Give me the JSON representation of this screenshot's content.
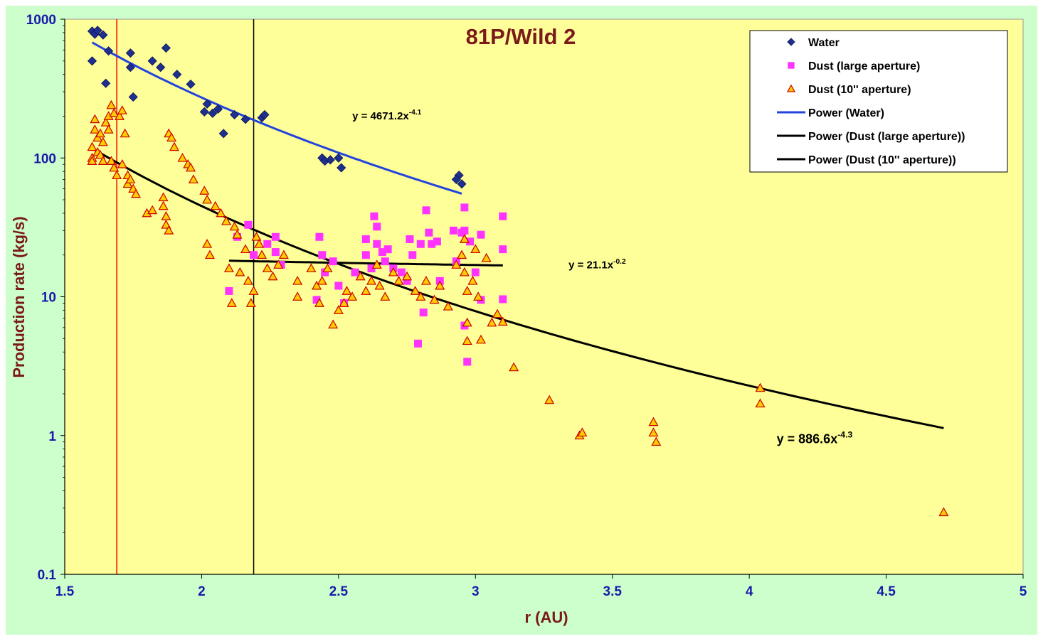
{
  "chart_data": {
    "type": "scatter",
    "title": "81P/Wild 2",
    "xlabel": "r (AU)",
    "ylabel": "Production rate (kg/s)",
    "x_scale": "linear",
    "y_scale": "log",
    "xlim": [
      1.5,
      5
    ],
    "ylim": [
      0.1,
      1000
    ],
    "x_ticks": [
      "1.5",
      "2",
      "2.5",
      "3",
      "3.5",
      "4",
      "4.5",
      "5"
    ],
    "y_ticks": [
      "0.1",
      "1",
      "10",
      "100",
      "1000"
    ],
    "grid": false,
    "legend_position": "top-right",
    "colors": {
      "outer_background": "#ccffcc",
      "plot_background": "#ffff99",
      "water": "#1f2f8f",
      "dust_large": "#ff33ff",
      "dust_10": "#ffcc00",
      "dust_10_edge": "#cc0000",
      "fit_water": "#2244dd",
      "fit_dust": "#000000",
      "title": "#7a1a1a",
      "axis_label": "#7a1a1a",
      "tick_label": "#1a1aaa"
    },
    "vertical_lines": [
      {
        "x": 1.69,
        "color": "#ff0000"
      },
      {
        "x": 2.19,
        "color": "#000000"
      }
    ],
    "series": [
      {
        "name": "Water",
        "marker": "diamond",
        "points": [
          [
            1.6,
            820
          ],
          [
            1.61,
            780
          ],
          [
            1.62,
            830
          ],
          [
            1.6,
            500
          ],
          [
            1.64,
            770
          ],
          [
            1.65,
            345
          ],
          [
            1.66,
            590
          ],
          [
            1.74,
            570
          ],
          [
            1.74,
            450
          ],
          [
            1.75,
            275
          ],
          [
            1.82,
            500
          ],
          [
            1.85,
            450
          ],
          [
            1.87,
            620
          ],
          [
            1.91,
            400
          ],
          [
            1.96,
            340
          ],
          [
            2.01,
            215
          ],
          [
            2.02,
            245
          ],
          [
            2.04,
            210
          ],
          [
            2.06,
            225
          ],
          [
            2.08,
            150
          ],
          [
            2.12,
            205
          ],
          [
            2.16,
            190
          ],
          [
            2.22,
            195
          ],
          [
            2.23,
            205
          ],
          [
            2.44,
            100
          ],
          [
            2.45,
            95
          ],
          [
            2.47,
            97
          ],
          [
            2.5,
            100
          ],
          [
            2.51,
            85
          ],
          [
            2.94,
            75
          ],
          [
            2.95,
            65
          ],
          [
            2.93,
            70
          ]
        ]
      },
      {
        "name": "Dust (large aperture)",
        "marker": "square",
        "points": [
          [
            2.1,
            11
          ],
          [
            2.13,
            27
          ],
          [
            2.17,
            33
          ],
          [
            2.19,
            20
          ],
          [
            2.24,
            24
          ],
          [
            2.27,
            27
          ],
          [
            2.27,
            21
          ],
          [
            2.29,
            17
          ],
          [
            2.42,
            9.5
          ],
          [
            2.43,
            27
          ],
          [
            2.44,
            20
          ],
          [
            2.45,
            15
          ],
          [
            2.48,
            18
          ],
          [
            2.5,
            12
          ],
          [
            2.52,
            9
          ],
          [
            2.56,
            15
          ],
          [
            2.6,
            26
          ],
          [
            2.6,
            20
          ],
          [
            2.62,
            16
          ],
          [
            2.63,
            38
          ],
          [
            2.64,
            32
          ],
          [
            2.64,
            24
          ],
          [
            2.66,
            21
          ],
          [
            2.67,
            18
          ],
          [
            2.68,
            22
          ],
          [
            2.7,
            16
          ],
          [
            2.73,
            15
          ],
          [
            2.75,
            13
          ],
          [
            2.76,
            26
          ],
          [
            2.77,
            20
          ],
          [
            2.79,
            4.6
          ],
          [
            2.8,
            24
          ],
          [
            2.81,
            7.7
          ],
          [
            2.82,
            42
          ],
          [
            2.83,
            29
          ],
          [
            2.84,
            24
          ],
          [
            2.86,
            25
          ],
          [
            2.87,
            13
          ],
          [
            2.92,
            30
          ],
          [
            2.93,
            18
          ],
          [
            2.95,
            29
          ],
          [
            2.96,
            44
          ],
          [
            2.96,
            30
          ],
          [
            2.96,
            6.2
          ],
          [
            2.97,
            3.4
          ],
          [
            2.98,
            25
          ],
          [
            3.0,
            15
          ],
          [
            3.02,
            28
          ],
          [
            3.02,
            9.5
          ],
          [
            3.1,
            38
          ],
          [
            3.1,
            22
          ],
          [
            3.1,
            9.6
          ]
        ]
      },
      {
        "name": "Dust (10'' aperture)",
        "marker": "triangle",
        "points": [
          [
            1.6,
            100
          ],
          [
            1.6,
            120
          ],
          [
            1.6,
            95
          ],
          [
            1.61,
            160
          ],
          [
            1.61,
            190
          ],
          [
            1.62,
            140
          ],
          [
            1.62,
            110
          ],
          [
            1.63,
            150
          ],
          [
            1.63,
            105
          ],
          [
            1.64,
            130
          ],
          [
            1.64,
            95
          ],
          [
            1.65,
            180
          ],
          [
            1.66,
            200
          ],
          [
            1.66,
            160
          ],
          [
            1.67,
            240
          ],
          [
            1.67,
            95
          ],
          [
            1.68,
            210
          ],
          [
            1.68,
            85
          ],
          [
            1.69,
            75
          ],
          [
            1.7,
            200
          ],
          [
            1.71,
            220
          ],
          [
            1.71,
            90
          ],
          [
            1.72,
            150
          ],
          [
            1.73,
            65
          ],
          [
            1.73,
            75
          ],
          [
            1.74,
            70
          ],
          [
            1.75,
            60
          ],
          [
            1.76,
            55
          ],
          [
            1.8,
            40
          ],
          [
            1.82,
            42
          ],
          [
            1.86,
            52
          ],
          [
            1.86,
            45
          ],
          [
            1.87,
            38
          ],
          [
            1.87,
            33
          ],
          [
            1.88,
            30
          ],
          [
            1.88,
            150
          ],
          [
            1.89,
            140
          ],
          [
            1.9,
            120
          ],
          [
            1.93,
            100
          ],
          [
            1.95,
            90
          ],
          [
            1.96,
            85
          ],
          [
            1.97,
            70
          ],
          [
            2.01,
            58
          ],
          [
            2.02,
            50
          ],
          [
            2.02,
            24
          ],
          [
            2.03,
            20
          ],
          [
            2.05,
            45
          ],
          [
            2.07,
            40
          ],
          [
            2.09,
            35
          ],
          [
            2.1,
            16
          ],
          [
            2.11,
            9
          ],
          [
            2.12,
            32
          ],
          [
            2.13,
            28
          ],
          [
            2.14,
            15
          ],
          [
            2.16,
            22
          ],
          [
            2.17,
            13
          ],
          [
            2.18,
            9
          ],
          [
            2.19,
            11
          ],
          [
            2.2,
            27
          ],
          [
            2.21,
            24
          ],
          [
            2.22,
            20
          ],
          [
            2.24,
            16
          ],
          [
            2.26,
            14
          ],
          [
            2.28,
            17
          ],
          [
            2.3,
            20
          ],
          [
            2.35,
            13
          ],
          [
            2.35,
            10
          ],
          [
            2.4,
            16
          ],
          [
            2.42,
            12
          ],
          [
            2.43,
            9
          ],
          [
            2.44,
            13
          ],
          [
            2.46,
            16
          ],
          [
            2.48,
            6.3
          ],
          [
            2.5,
            8
          ],
          [
            2.52,
            9
          ],
          [
            2.53,
            11
          ],
          [
            2.55,
            10
          ],
          [
            2.58,
            14
          ],
          [
            2.6,
            11
          ],
          [
            2.62,
            13
          ],
          [
            2.64,
            17
          ],
          [
            2.65,
            12
          ],
          [
            2.67,
            10
          ],
          [
            2.7,
            15
          ],
          [
            2.72,
            13
          ],
          [
            2.75,
            14
          ],
          [
            2.78,
            11
          ],
          [
            2.8,
            10
          ],
          [
            2.82,
            13
          ],
          [
            2.85,
            9.5
          ],
          [
            2.87,
            12
          ],
          [
            2.9,
            8.5
          ],
          [
            2.93,
            17
          ],
          [
            2.95,
            20
          ],
          [
            2.96,
            26
          ],
          [
            2.96,
            15
          ],
          [
            2.97,
            11
          ],
          [
            2.97,
            6.5
          ],
          [
            2.97,
            4.8
          ],
          [
            2.99,
            13
          ],
          [
            3.0,
            22
          ],
          [
            3.01,
            10
          ],
          [
            3.02,
            4.9
          ],
          [
            3.04,
            19
          ],
          [
            3.06,
            6.5
          ],
          [
            3.08,
            7.5
          ],
          [
            3.1,
            6.6
          ],
          [
            3.14,
            3.1
          ],
          [
            3.27,
            1.8
          ],
          [
            3.38,
            1.0
          ],
          [
            3.39,
            1.05
          ],
          [
            3.65,
            1.25
          ],
          [
            3.65,
            1.05
          ],
          [
            3.66,
            0.9
          ],
          [
            4.04,
            2.2
          ],
          [
            4.04,
            1.7
          ],
          [
            4.71,
            0.28
          ]
        ]
      },
      {
        "name": "Power (Water)",
        "type": "line",
        "formula": {
          "a": 4671.2,
          "b": -4.1
        },
        "xrange": [
          1.6,
          2.95
        ]
      },
      {
        "name": "Power (Dust (large aperture))",
        "type": "line",
        "formula": {
          "a": 21.1,
          "b": -0.2
        },
        "xrange": [
          2.1,
          3.1
        ]
      },
      {
        "name": "Power (Dust (10'' aperture))",
        "type": "line",
        "formula": {
          "a": 886.6,
          "b": -4.3
        },
        "xrange": [
          1.6,
          4.71
        ]
      }
    ],
    "annotations": [
      {
        "base": "y = 4671.2x",
        "exponent": "-4.1",
        "x": 2.55,
        "y": 190,
        "size": "small"
      },
      {
        "base": "y = 21.1x",
        "exponent": "-0.2",
        "x": 3.34,
        "y": 16,
        "size": "small"
      },
      {
        "base": "y = 886.6x",
        "exponent": "-4.3",
        "x": 4.1,
        "y": 0.88,
        "size": "large"
      }
    ]
  }
}
